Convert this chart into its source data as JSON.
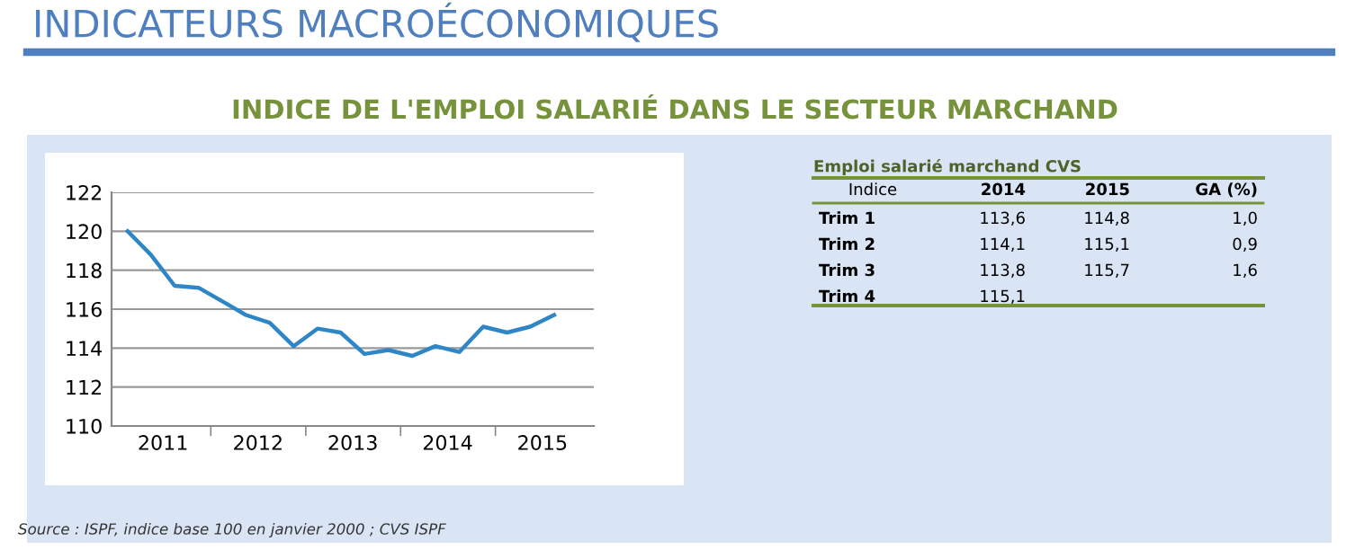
{
  "chart_data": [
    {
      "type": "line",
      "title": "INDICATEURS MACROÉCONOMIQUES",
      "subtitle": "INDICE DE L'EMPLOI SALARIÉ DANS LE SECTEUR MARCHAND",
      "x": [
        "2011-02-15",
        "2011-05-15",
        "2011-08-15",
        "2011-11-15",
        "2012-02-15",
        "2012-05-15",
        "2012-08-15",
        "2012-11-15",
        "2013-02-15",
        "2013-05-15",
        "2013-08-15",
        "2013-11-15",
        "2014-02-15",
        "2014-05-15",
        "2014-08-15",
        "2014-11-15",
        "2015-02-15",
        "2015-05-15",
        "2015-08-15"
      ],
      "series": [
        {
          "color": "#2f86c6",
          "values": [
            120.0,
            118.8,
            117.2,
            117.1,
            116.4,
            115.7,
            115.3,
            114.1,
            115.0,
            114.8,
            113.7,
            113.9,
            113.6,
            114.1,
            113.8,
            115.1,
            114.8,
            115.1,
            115.7
          ]
        }
      ],
      "xlim": [
        "2010-12-15",
        "2016-01-15"
      ],
      "xticks": [
        {
          "value": "2011-07-01",
          "label": "2011"
        },
        {
          "value": "2012-01-01",
          "label": null
        },
        {
          "value": "2012-07-01",
          "label": "2012"
        },
        {
          "value": "2013-01-01",
          "label": null
        },
        {
          "value": "2013-07-01",
          "label": "2013"
        },
        {
          "value": "2014-01-01",
          "label": null
        },
        {
          "value": "2014-07-01",
          "label": "2014"
        },
        {
          "value": "2015-01-01",
          "label": null
        },
        {
          "value": "2015-07-01",
          "label": "2015"
        }
      ],
      "ylim": [
        110,
        122
      ],
      "yticks": [
        110,
        112,
        114,
        116,
        118,
        120,
        122
      ],
      "grid": "y",
      "marker": "none",
      "line_style": "solid",
      "annotations": [
        "Source : ISPF, indice base 100 en janvier 2000 ; CVS ISPF"
      ]
    },
    {
      "type": "other",
      "title": "Emploi salarié marchand CVS",
      "categories": [
        "Indice",
        "2014",
        "2015",
        "GA (%)"
      ],
      "y_categories": [
        "Trim 1",
        "Trim 2",
        "Trim 3",
        "Trim 4"
      ],
      "cell_labels": [
        [
          "113,6",
          "114,8",
          "1,0"
        ],
        [
          "114,1",
          "115,1",
          "0,9"
        ],
        [
          "113,8",
          "115,7",
          "1,6"
        ],
        [
          "115,1",
          null,
          null
        ]
      ]
    }
  ]
}
